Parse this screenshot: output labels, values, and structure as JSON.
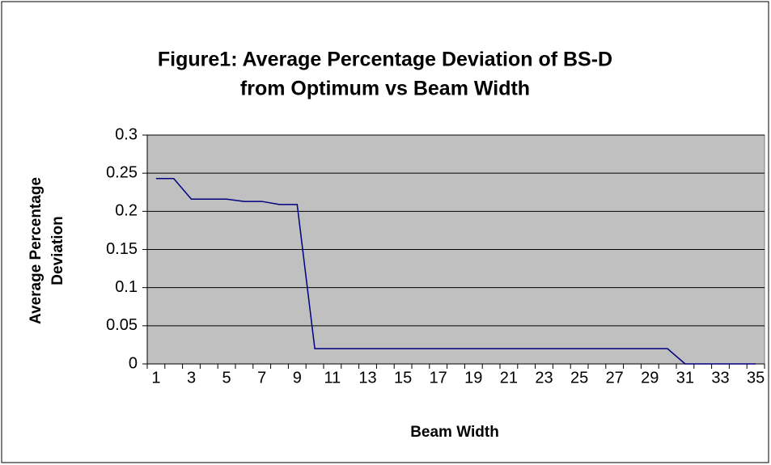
{
  "chart_data": {
    "type": "line",
    "title": [
      "Figure1: Average Percentage Deviation of BS-D",
      "from Optimum vs Beam Width"
    ],
    "x_label": "Beam Width",
    "y_label": [
      "Average Percentage",
      "Deviation"
    ],
    "categories": [
      1,
      null,
      3,
      null,
      5,
      null,
      7,
      null,
      9,
      null,
      11,
      null,
      13,
      null,
      15,
      null,
      17,
      null,
      19,
      null,
      21,
      null,
      23,
      null,
      25,
      null,
      27,
      null,
      29,
      null,
      31,
      null,
      33,
      null,
      35
    ],
    "series": [
      {
        "name": "BS-D",
        "color": "#000080",
        "values": [
          0.243,
          0.243,
          0.216,
          0.216,
          0.216,
          0.213,
          0.213,
          0.209,
          0.209,
          0.02,
          0.02,
          0.02,
          0.02,
          0.02,
          0.02,
          0.02,
          0.02,
          0.02,
          0.02,
          0.02,
          0.02,
          0.02,
          0.02,
          0.02,
          0.02,
          0.02,
          0.02,
          0.02,
          0.02,
          0.02,
          0,
          0,
          0,
          0,
          0
        ]
      }
    ],
    "ylim": [
      0,
      0.3
    ],
    "yticks": [
      0,
      0.05,
      0.1,
      0.15,
      0.2,
      0.25,
      0.3
    ],
    "grid": true,
    "plot_background": "#c0c0c0"
  }
}
